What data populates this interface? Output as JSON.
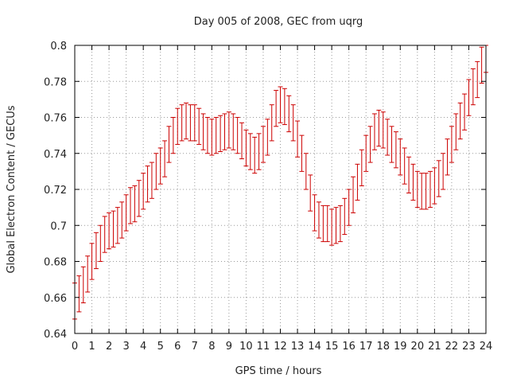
{
  "chart_data": {
    "type": "scatter",
    "title": "Day 005 of 2008, GEC from uqrg",
    "xlabel": "GPS time / hours",
    "ylabel": "Global Electron Content / GECUs",
    "xlim": [
      0,
      24
    ],
    "ylim": [
      0.64,
      0.8
    ],
    "x_ticks": [
      0,
      1,
      2,
      3,
      4,
      5,
      6,
      7,
      8,
      9,
      10,
      11,
      12,
      13,
      14,
      15,
      16,
      17,
      18,
      19,
      20,
      21,
      22,
      23,
      24
    ],
    "x_tick_labels": [
      "0",
      "1",
      "2",
      "3",
      "4",
      "5",
      "6",
      "7",
      "8",
      "9",
      "10",
      "11",
      "12",
      "13",
      "14",
      "15",
      "16",
      "17",
      "18",
      "19",
      "20",
      "21",
      "22",
      "23",
      "24"
    ],
    "y_ticks": [
      0.64,
      0.66,
      0.68,
      0.7,
      0.72,
      0.74,
      0.76,
      0.78,
      0.8
    ],
    "y_tick_labels": [
      "0.64",
      "0.66",
      "0.68",
      "0.7",
      "0.72",
      "0.74",
      "0.76",
      "0.78",
      "0.8"
    ],
    "grid": true,
    "error_bar_color": "#cc0000",
    "series": [
      {
        "x": [
          0.0,
          0.25,
          0.5,
          0.75,
          1.0,
          1.25,
          1.5,
          1.75,
          2.0,
          2.25,
          2.5,
          2.75,
          3.0,
          3.25,
          3.5,
          3.75,
          4.0,
          4.25,
          4.5,
          4.75,
          5.0,
          5.25,
          5.5,
          5.75,
          6.0,
          6.25,
          6.5,
          6.75,
          7.0,
          7.25,
          7.5,
          7.75,
          8.0,
          8.25,
          8.5,
          8.75,
          9.0,
          9.25,
          9.5,
          9.75,
          10.0,
          10.25,
          10.5,
          10.75,
          11.0,
          11.25,
          11.5,
          11.75,
          12.0,
          12.25,
          12.5,
          12.75,
          13.0,
          13.25,
          13.5,
          13.75,
          14.0,
          14.25,
          14.5,
          14.75,
          15.0,
          15.25,
          15.5,
          15.75,
          16.0,
          16.25,
          16.5,
          16.75,
          17.0,
          17.25,
          17.5,
          17.75,
          18.0,
          18.25,
          18.5,
          18.75,
          19.0,
          19.25,
          19.5,
          19.75,
          20.0,
          20.25,
          20.5,
          20.75,
          21.0,
          21.25,
          21.5,
          21.75,
          22.0,
          22.25,
          22.5,
          22.75,
          23.0,
          23.25,
          23.5,
          23.75,
          24.0
        ],
        "y": [
          0.658,
          0.662,
          0.667,
          0.673,
          0.68,
          0.686,
          0.69,
          0.695,
          0.697,
          0.698,
          0.7,
          0.703,
          0.707,
          0.711,
          0.712,
          0.715,
          0.719,
          0.723,
          0.725,
          0.73,
          0.733,
          0.737,
          0.745,
          0.75,
          0.755,
          0.757,
          0.758,
          0.757,
          0.757,
          0.755,
          0.752,
          0.75,
          0.749,
          0.75,
          0.751,
          0.752,
          0.753,
          0.752,
          0.75,
          0.747,
          0.743,
          0.741,
          0.739,
          0.741,
          0.745,
          0.749,
          0.757,
          0.765,
          0.767,
          0.766,
          0.762,
          0.757,
          0.748,
          0.74,
          0.73,
          0.718,
          0.707,
          0.703,
          0.701,
          0.701,
          0.699,
          0.7,
          0.701,
          0.705,
          0.71,
          0.717,
          0.724,
          0.732,
          0.74,
          0.745,
          0.752,
          0.754,
          0.753,
          0.749,
          0.745,
          0.742,
          0.738,
          0.733,
          0.728,
          0.724,
          0.72,
          0.719,
          0.719,
          0.72,
          0.722,
          0.726,
          0.73,
          0.738,
          0.745,
          0.752,
          0.758,
          0.763,
          0.771,
          0.777,
          0.781,
          0.789,
          0.795
        ],
        "err": [
          0.01,
          0.01,
          0.01,
          0.01,
          0.01,
          0.01,
          0.01,
          0.01,
          0.01,
          0.01,
          0.01,
          0.01,
          0.01,
          0.01,
          0.01,
          0.01,
          0.01,
          0.01,
          0.01,
          0.01,
          0.01,
          0.01,
          0.01,
          0.01,
          0.01,
          0.01,
          0.01,
          0.01,
          0.01,
          0.01,
          0.01,
          0.01,
          0.01,
          0.01,
          0.01,
          0.01,
          0.01,
          0.01,
          0.01,
          0.01,
          0.01,
          0.01,
          0.01,
          0.01,
          0.01,
          0.01,
          0.01,
          0.01,
          0.01,
          0.01,
          0.01,
          0.01,
          0.01,
          0.01,
          0.01,
          0.01,
          0.01,
          0.01,
          0.01,
          0.01,
          0.01,
          0.01,
          0.01,
          0.01,
          0.01,
          0.01,
          0.01,
          0.01,
          0.01,
          0.01,
          0.01,
          0.01,
          0.01,
          0.01,
          0.01,
          0.01,
          0.01,
          0.01,
          0.01,
          0.01,
          0.01,
          0.01,
          0.01,
          0.01,
          0.01,
          0.01,
          0.01,
          0.01,
          0.01,
          0.01,
          0.01,
          0.01,
          0.01,
          0.01,
          0.01,
          0.01,
          0.01
        ]
      }
    ]
  }
}
